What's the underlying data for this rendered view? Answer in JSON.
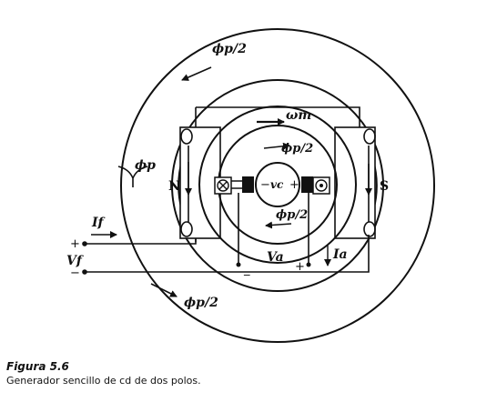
{
  "figure": {
    "labels": {
      "flux_top": "ϕp/2",
      "flux_bottom": "ϕp/2",
      "flux_inner_top": "ϕp/2",
      "flux_inner_bottom": "ϕp/2",
      "omega": "ωm",
      "flux_pole": "ϕp",
      "pole_n": "N",
      "pole_s": "S",
      "commutator_voltage": "vc",
      "field_current": "If",
      "field_voltage": "Vf",
      "armature_voltage": "Va",
      "armature_current": "Ia",
      "plus": "+",
      "minus": "−",
      "minus_under": "_"
    }
  },
  "caption": {
    "title": "Figura 5.6",
    "text": "Generador sencillo de cd de dos polos."
  }
}
